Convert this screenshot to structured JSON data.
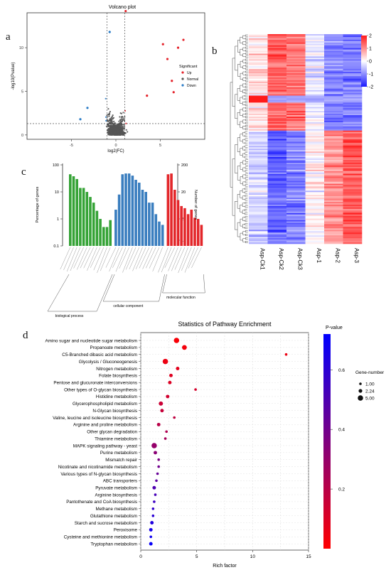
{
  "panel_labels": {
    "a": "a",
    "b": "b",
    "c": "c",
    "d": "d"
  },
  "chart_data": [
    {
      "id": "volcano",
      "type": "scatter",
      "title": "Volcano plot",
      "xlabel": "log2(FC)",
      "ylabel": "-log10(Pvalue)",
      "xlim": [
        -10,
        10
      ],
      "ylim": [
        -0.5,
        14
      ],
      "x_ticks": [
        -5,
        0,
        5
      ],
      "y_ticks": [
        0,
        5,
        10
      ],
      "threshold_lines": {
        "x": [
          -1,
          1
        ],
        "y": 1.3
      },
      "legend": {
        "title": "Significant",
        "position": "right",
        "entries": [
          {
            "name": "Up",
            "color": "#e4232b"
          },
          {
            "name": "Normal",
            "color": "#555555"
          },
          {
            "name": "Down",
            "color": "#2b7cc6"
          }
        ]
      },
      "highlight_points": [
        {
          "x": 5.3,
          "y": 10.4,
          "group": "Up"
        },
        {
          "x": 7.0,
          "y": 10.0,
          "group": "Up"
        },
        {
          "x": 7.6,
          "y": 10.9,
          "group": "Up"
        },
        {
          "x": 5.8,
          "y": 8.7,
          "group": "Up"
        },
        {
          "x": 6.3,
          "y": 6.2,
          "group": "Up"
        },
        {
          "x": 1.1,
          "y": 14.2,
          "group": "Up"
        },
        {
          "x": 6.5,
          "y": 4.9,
          "group": "Up"
        },
        {
          "x": 3.5,
          "y": 4.5,
          "group": "Up"
        },
        {
          "x": -3.2,
          "y": 3.1,
          "group": "Down"
        },
        {
          "x": -4.0,
          "y": 1.8,
          "group": "Down"
        },
        {
          "x": -0.7,
          "y": 11.8,
          "group": "Down"
        }
      ]
    },
    {
      "id": "heatmap",
      "type": "heatmap",
      "columns": [
        "Asp-Ck1",
        "Asp-Ck2",
        "Asp-Ck3",
        "Asp-1",
        "Asp-2",
        "Asp-3"
      ],
      "colorbar": {
        "ticks": [
          2,
          1,
          0,
          -1,
          -2
        ],
        "range": [
          -2,
          2
        ],
        "low": "#1a1aff",
        "mid": "#ffffff",
        "high": "#ff1a1a"
      }
    },
    {
      "id": "go_bar",
      "type": "bar",
      "ylabel": "Percentage of genes",
      "ylabel_right": "Number of genes",
      "y_ticks_left": [
        "100",
        "10",
        "1",
        "0.1"
      ],
      "y_ticks_right": [
        "200",
        "20",
        "2",
        "1"
      ],
      "groups": [
        {
          "name": "biological process",
          "color": "#35a336",
          "values": [
            45,
            38,
            30,
            14,
            14,
            10,
            6.5,
            4,
            2,
            1,
            0.5,
            0.5,
            0.9
          ]
        },
        {
          "name": "cellular component",
          "color": "#3a7ebf",
          "values": [
            2.2,
            8,
            45,
            48,
            48,
            40,
            28,
            22,
            12,
            10,
            4,
            4,
            1.5,
            0.8,
            0.6
          ]
        },
        {
          "name": "molecular function",
          "color": "#e3262a",
          "values": [
            45,
            48,
            12,
            5,
            3,
            2.5,
            1.5,
            2.2,
            1.1,
            1,
            0.6
          ]
        }
      ]
    },
    {
      "id": "pathway",
      "type": "scatter",
      "title": "Statistics of Pathway Enrichment",
      "xlabel": "Rich factor",
      "xlim": [
        0,
        15
      ],
      "x_ticks": [
        0,
        5,
        10,
        15
      ],
      "color_legend": {
        "title": "P-value",
        "ticks": [
          "0.6",
          "0.4",
          "0.2"
        ],
        "value_ticks": [
          0.6,
          0.4,
          0.2
        ],
        "range": [
          0,
          0.72
        ],
        "low": "#ff0000",
        "high": "#0000ff"
      },
      "size_legend": {
        "title": "Gene-number",
        "entries": [
          "1.00",
          "2.24",
          "5.00"
        ],
        "values": [
          1,
          2.24,
          5
        ]
      },
      "pathways": [
        {
          "name": "Amino sugar and nucleotide sugar metabolism",
          "rich": 3.2,
          "genes": 5,
          "p": 0.02
        },
        {
          "name": "Propanoate metabolism",
          "rich": 3.9,
          "genes": 4,
          "p": 0.03
        },
        {
          "name": "C5-Branched dibasic acid metabolism",
          "rich": 13.0,
          "genes": 1,
          "p": 0.05
        },
        {
          "name": "Glycolysis / Gluconeogenesis",
          "rich": 2.2,
          "genes": 5,
          "p": 0.05
        },
        {
          "name": "Nitrogen metabolism",
          "rich": 3.3,
          "genes": 2,
          "p": 0.08
        },
        {
          "name": "Folate biosynthesis",
          "rich": 2.7,
          "genes": 2,
          "p": 0.09
        },
        {
          "name": "Pentose and glucuronate interconversions",
          "rich": 2.6,
          "genes": 2,
          "p": 0.1
        },
        {
          "name": "Other types of O-glycan biosynthesis",
          "rich": 4.9,
          "genes": 1,
          "p": 0.12
        },
        {
          "name": "Histidine metabolism",
          "rich": 2.4,
          "genes": 2,
          "p": 0.13
        },
        {
          "name": "Glycerophospholipid metabolism",
          "rich": 1.8,
          "genes": 3,
          "p": 0.15
        },
        {
          "name": "N-Glycan biosynthesis",
          "rich": 1.9,
          "genes": 2,
          "p": 0.16
        },
        {
          "name": "Valine, leucine and isoleucine biosynthesis",
          "rich": 3.0,
          "genes": 1,
          "p": 0.18
        },
        {
          "name": "Arginine and proline metabolism",
          "rich": 1.6,
          "genes": 2,
          "p": 0.2
        },
        {
          "name": "Other glycan degradation",
          "rich": 2.3,
          "genes": 1,
          "p": 0.23
        },
        {
          "name": "Thiamine metabolism",
          "rich": 2.2,
          "genes": 1,
          "p": 0.25
        },
        {
          "name": "MAPK signaling pathway - yeast",
          "rich": 1.2,
          "genes": 5,
          "p": 0.3
        },
        {
          "name": "Purine metabolism",
          "rich": 1.3,
          "genes": 2,
          "p": 0.33
        },
        {
          "name": "Mismatch repair",
          "rich": 1.6,
          "genes": 1,
          "p": 0.37
        },
        {
          "name": "Nicotinate and nicotinamide metabolism",
          "rich": 1.6,
          "genes": 1,
          "p": 0.4
        },
        {
          "name": "Various types of N-glycan biosynthesis",
          "rich": 1.5,
          "genes": 1,
          "p": 0.43
        },
        {
          "name": "ABC transporters",
          "rich": 1.4,
          "genes": 1,
          "p": 0.46
        },
        {
          "name": "Pyruvate metabolism",
          "rich": 1.2,
          "genes": 2,
          "p": 0.5
        },
        {
          "name": "Arginine biosynthesis",
          "rich": 1.3,
          "genes": 1,
          "p": 0.52
        },
        {
          "name": "Pantothenate and CoA biosynthesis",
          "rich": 1.2,
          "genes": 1,
          "p": 0.55
        },
        {
          "name": "Methane metabolism",
          "rich": 1.1,
          "genes": 1,
          "p": 0.58
        },
        {
          "name": "Glutathione metabolism",
          "rich": 1.1,
          "genes": 1,
          "p": 0.6
        },
        {
          "name": "Starch and sucrose metabolism",
          "rich": 1.0,
          "genes": 2,
          "p": 0.63
        },
        {
          "name": "Peroxisome",
          "rich": 0.9,
          "genes": 2,
          "p": 0.66
        },
        {
          "name": "Cysteine and methionine metabolism",
          "rich": 0.9,
          "genes": 1,
          "p": 0.68
        },
        {
          "name": "Tryptophan metabolism",
          "rich": 0.9,
          "genes": 2,
          "p": 0.7
        }
      ]
    }
  ]
}
